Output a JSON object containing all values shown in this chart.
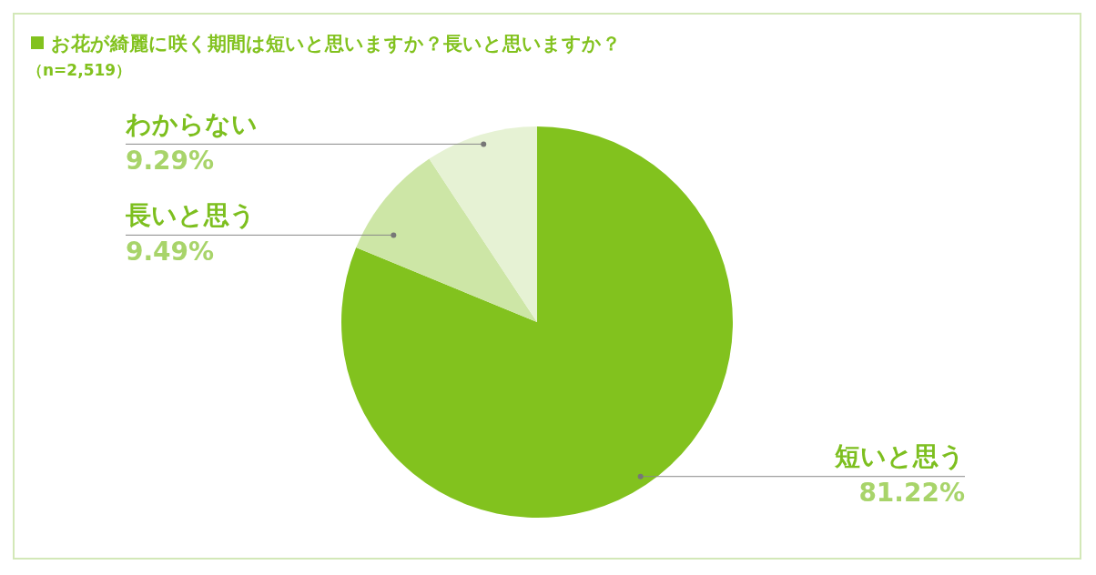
{
  "chart_data": {
    "type": "pie",
    "title": "お花が綺麗に咲く期間は短いと思いますか？長いと思いますか？",
    "subtitle": "（n=2,519）",
    "categories": [
      "短いと思う",
      "長いと思う",
      "わからない"
    ],
    "values": [
      81.22,
      9.49,
      9.29
    ],
    "colors": [
      "#82c21e",
      "#cde6a6",
      "#e6f2d4"
    ],
    "value_labels": [
      "81.22%",
      "9.49%",
      "9.29%"
    ],
    "legend": false
  }
}
